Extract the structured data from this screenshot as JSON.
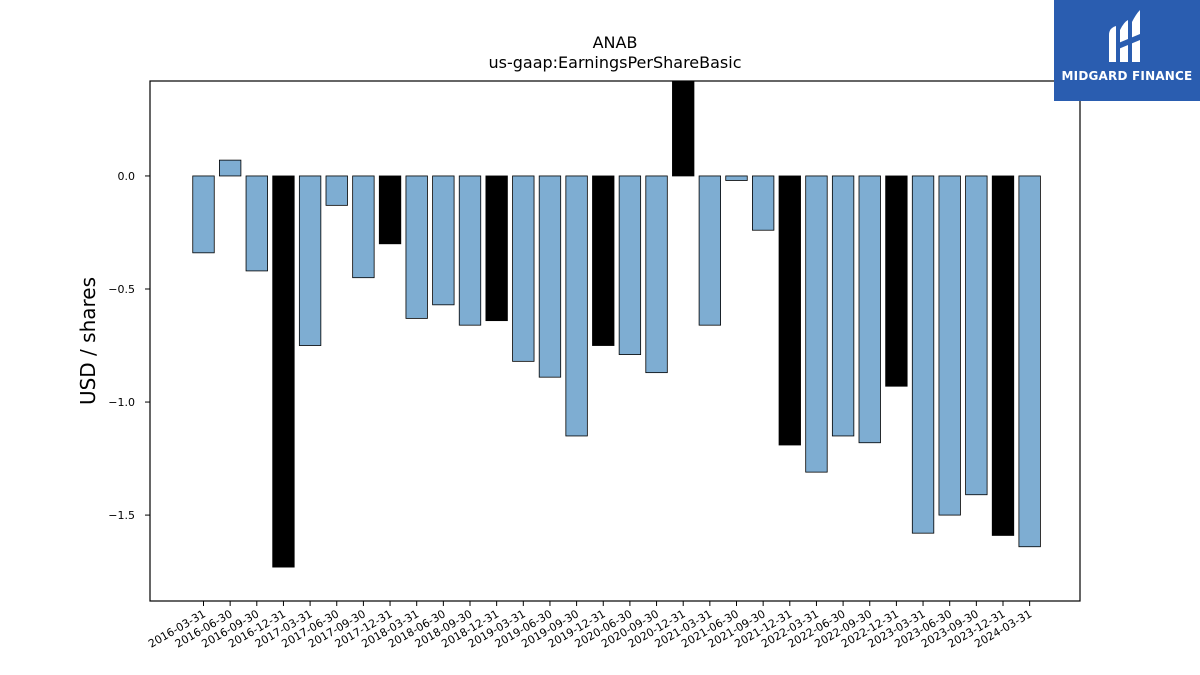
{
  "brand": {
    "name": "MIDGARD FINANCE",
    "bg_color": "#2a5db0",
    "icon": "midgard-logo-icon"
  },
  "chart_data": {
    "type": "bar",
    "title": "ANAB",
    "subtitle": "us-gaap:EarningsPerShareBasic",
    "xlabel": "",
    "ylabel": "USD / shares",
    "ylim": [
      -1.88,
      0.42
    ],
    "yticks": [
      0.0,
      -0.5,
      -1.0,
      -1.5
    ],
    "ytick_labels": [
      "0.0",
      "−0.5",
      "−1.0",
      "−1.5"
    ],
    "grid": false,
    "colors": {
      "quarter": "#7eadd2",
      "fiscal_year_end": "#000000"
    },
    "categories": [
      "2016-03-31",
      "2016-06-30",
      "2016-09-30",
      "2016-12-31",
      "2017-03-31",
      "2017-06-30",
      "2017-09-30",
      "2017-12-31",
      "2018-03-31",
      "2018-06-30",
      "2018-09-30",
      "2018-12-31",
      "2019-03-31",
      "2019-06-30",
      "2019-09-30",
      "2019-12-31",
      "2020-06-30",
      "2020-09-30",
      "2020-12-31",
      "2021-03-31",
      "2021-06-30",
      "2021-09-30",
      "2021-12-31",
      "2022-03-31",
      "2022-06-30",
      "2022-09-30",
      "2022-12-31",
      "2023-03-31",
      "2023-06-30",
      "2023-09-30",
      "2023-12-31",
      "2024-03-31"
    ],
    "values": [
      -0.34,
      0.07,
      -0.42,
      -1.73,
      -0.75,
      -0.13,
      -0.45,
      -0.3,
      -0.63,
      -0.57,
      -0.66,
      -0.64,
      -0.82,
      -0.89,
      -1.15,
      -0.75,
      -0.79,
      -0.87,
      0.42,
      -0.66,
      -0.02,
      -0.24,
      -1.19,
      -1.31,
      -1.15,
      -1.18,
      -0.93,
      -1.58,
      -1.5,
      -1.41,
      -1.59,
      -1.64
    ],
    "highlight": [
      false,
      false,
      false,
      true,
      false,
      false,
      false,
      true,
      false,
      false,
      false,
      true,
      false,
      false,
      false,
      true,
      false,
      false,
      true,
      false,
      false,
      false,
      true,
      false,
      false,
      false,
      true,
      false,
      false,
      false,
      true,
      false
    ]
  }
}
